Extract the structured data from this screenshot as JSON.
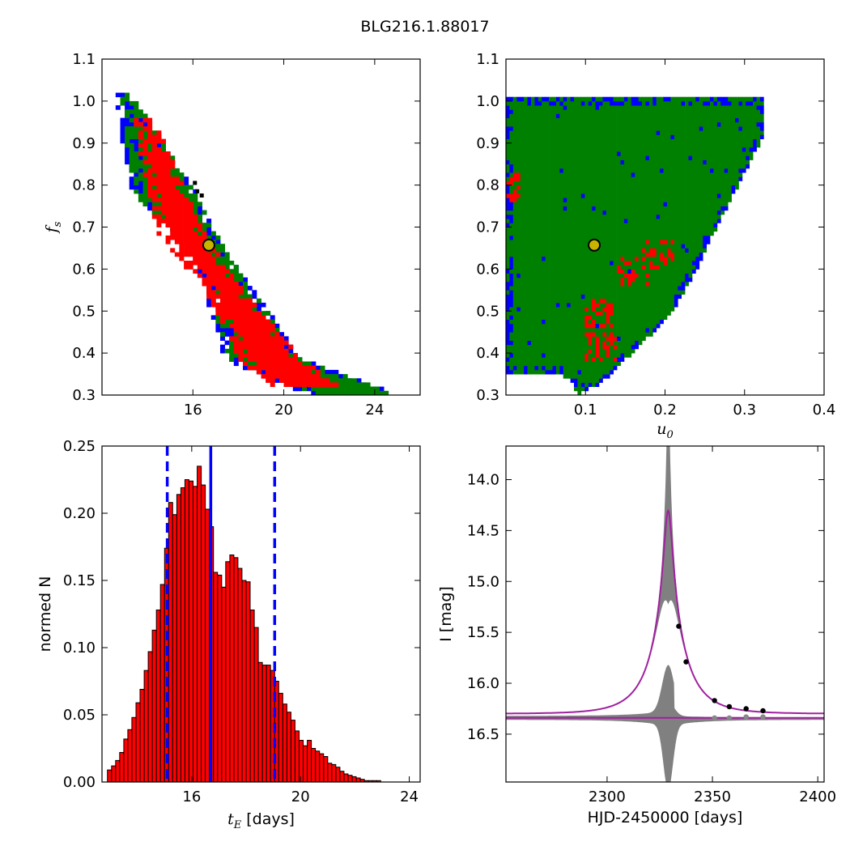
{
  "figure": {
    "title": "BLG216.1.88017"
  },
  "chart_data": [
    {
      "panel": "top-left",
      "type": "heatmap",
      "title": "",
      "xlabel": "",
      "ylabel": "f_s",
      "ylabel_parts": {
        "base": "f",
        "sub": "s"
      },
      "xlim": [
        12.0,
        26.0
      ],
      "ylim": [
        0.3,
        1.1
      ],
      "xticks": [
        16,
        20,
        24
      ],
      "xtick_labels": [
        "16",
        "20",
        "24"
      ],
      "yticks": [
        0.3,
        0.4,
        0.5,
        0.6,
        0.7,
        0.8,
        0.9,
        1.0,
        1.1
      ],
      "ytick_labels": [
        "0.3",
        "0.4",
        "0.5",
        "0.6",
        "0.7",
        "0.8",
        "0.9",
        "1.0",
        "1.1"
      ],
      "levels": [
        {
          "color": "#0000ff",
          "band": [
            [
              12.7,
              13.0,
              1.01
            ],
            [
              13.3,
              16.0,
              0.78
            ],
            [
              16.0,
              17.2,
              0.65
            ],
            [
              17.5,
              20.7,
              0.38
            ],
            [
              21.0,
              24.7,
              0.3
            ]
          ]
        },
        {
          "color": "#008000",
          "band": [
            [
              12.8,
              13.2,
              1.01
            ],
            [
              13.6,
              16.1,
              0.77
            ],
            [
              16.2,
              17.3,
              0.64
            ],
            [
              17.7,
              20.6,
              0.38
            ],
            [
              21.2,
              24.6,
              0.3
            ]
          ]
        },
        {
          "color": "#ff0000",
          "band": [
            [
              13.5,
              14.2,
              0.95
            ],
            [
              14.5,
              16.4,
              0.68
            ],
            [
              16.6,
              18.0,
              0.55
            ],
            [
              18.1,
              20.7,
              0.38
            ],
            [
              19.5,
              22.2,
              0.32
            ]
          ]
        }
      ],
      "marker": {
        "x": 16.7,
        "y": 0.657,
        "face": "#c8b400",
        "edge": "#000000"
      }
    },
    {
      "panel": "top-right",
      "type": "heatmap",
      "title": "",
      "xlabel": "u_0",
      "xlabel_parts": {
        "base": "u",
        "sub": "0"
      },
      "ylabel": "",
      "xlim": [
        0.0,
        0.4
      ],
      "ylim": [
        0.3,
        1.1
      ],
      "xticks": [
        0.1,
        0.2,
        0.3,
        0.4
      ],
      "xtick_labels": [
        "0.1",
        "0.2",
        "0.3",
        "0.4"
      ],
      "yticks": [
        0.3,
        0.4,
        0.5,
        0.6,
        0.7,
        0.8,
        0.9,
        1.0,
        1.1
      ],
      "ytick_labels": [
        "0.3",
        "0.4",
        "0.5",
        "0.6",
        "0.7",
        "0.8",
        "0.9",
        "1.0",
        "1.1"
      ],
      "green_color": "#008000",
      "blue_color": "#0000ff",
      "red_color": "#ff0000",
      "region_boundary": [
        [
          0.0,
          1.01
        ],
        [
          0.325,
          1.01
        ],
        [
          0.325,
          0.92
        ],
        [
          0.3,
          0.83
        ],
        [
          0.27,
          0.72
        ],
        [
          0.24,
          0.6
        ],
        [
          0.21,
          0.5
        ],
        [
          0.17,
          0.42
        ],
        [
          0.12,
          0.33
        ],
        [
          0.09,
          0.3
        ],
        [
          0.08,
          0.34
        ],
        [
          0.06,
          0.35
        ],
        [
          0.0,
          0.35
        ]
      ],
      "red_spots": [
        [
          0.12,
          0.42
        ],
        [
          0.115,
          0.5
        ],
        [
          0.19,
          0.64
        ],
        [
          0.16,
          0.6
        ],
        [
          0.0,
          0.8
        ]
      ],
      "marker": {
        "x": 0.111,
        "y": 0.657,
        "face": "#c8b400",
        "edge": "#000000"
      }
    },
    {
      "panel": "bottom-left",
      "type": "bar",
      "title": "",
      "xlabel": "t_E [days]",
      "xlabel_parts": {
        "base": "t",
        "sub": "E",
        "rest": " [days]"
      },
      "ylabel": "normed N",
      "xlim": [
        12.7,
        24.4
      ],
      "ylim": [
        0.0,
        0.25
      ],
      "xticks": [
        16,
        20,
        24
      ],
      "xtick_labels": [
        "16",
        "20",
        "24"
      ],
      "yticks": [
        0.0,
        0.05,
        0.1,
        0.15,
        0.2,
        0.25
      ],
      "ytick_labels": [
        "0.00",
        "0.05",
        "0.10",
        "0.15",
        "0.20",
        "0.25"
      ],
      "bar_color": "#ff0000",
      "bin_start": 12.9,
      "bin_width": 0.15,
      "values": [
        0.009,
        0.012,
        0.016,
        0.022,
        0.032,
        0.039,
        0.048,
        0.059,
        0.069,
        0.083,
        0.097,
        0.113,
        0.128,
        0.147,
        0.174,
        0.208,
        0.199,
        0.214,
        0.219,
        0.225,
        0.224,
        0.22,
        0.235,
        0.221,
        0.203,
        0.19,
        0.156,
        0.154,
        0.145,
        0.164,
        0.169,
        0.167,
        0.159,
        0.15,
        0.149,
        0.128,
        0.115,
        0.089,
        0.087,
        0.087,
        0.083,
        0.075,
        0.066,
        0.058,
        0.052,
        0.046,
        0.038,
        0.031,
        0.027,
        0.031,
        0.025,
        0.023,
        0.021,
        0.019,
        0.014,
        0.013,
        0.011,
        0.008,
        0.006,
        0.005,
        0.004,
        0.003,
        0.002,
        0.001,
        0.001,
        0.001,
        0.001
      ],
      "median_line": {
        "x": 16.7,
        "color": "#0000ff"
      },
      "dashed_lines": [
        {
          "x": 15.1,
          "color": "#0000ff"
        },
        {
          "x": 19.05,
          "color": "#0000ff"
        }
      ]
    },
    {
      "panel": "bottom-right",
      "type": "line",
      "title": "",
      "xlabel": "HJD-2450000 [days]",
      "ylabel": "I [mag]",
      "xlim": [
        2252,
        2403
      ],
      "ylim": [
        16.97,
        13.67
      ],
      "y_inverted": true,
      "xticks": [
        2300,
        2350,
        2400
      ],
      "xtick_labels": [
        "2300",
        "2350",
        "2400"
      ],
      "yticks": [
        14.0,
        14.5,
        15.0,
        15.5,
        16.0,
        16.5
      ],
      "ytick_labels": [
        "14.0",
        "14.5",
        "15.0",
        "15.5",
        "16.0",
        "16.5"
      ],
      "model": {
        "t0": 2329.0,
        "u0": 0.111,
        "tE": 16.7,
        "fs": 0.657,
        "baseline": 16.3,
        "color": "#a020a0"
      },
      "baseline_line": {
        "y": 16.34,
        "color": "#a020a0"
      },
      "band_color": "#808080",
      "data_points": [
        {
          "x": 2334.0,
          "y": 15.44
        },
        {
          "x": 2337.5,
          "y": 15.79
        },
        {
          "x": 2351.0,
          "y": 16.17
        },
        {
          "x": 2358.0,
          "y": 16.23
        },
        {
          "x": 2366.0,
          "y": 16.25
        },
        {
          "x": 2374.0,
          "y": 16.27
        }
      ],
      "residual_points": [
        {
          "x": 2351.0,
          "y": 16.34
        },
        {
          "x": 2358.0,
          "y": 16.34
        },
        {
          "x": 2366.0,
          "y": 16.33
        },
        {
          "x": 2374.0,
          "y": 16.33
        }
      ]
    }
  ]
}
